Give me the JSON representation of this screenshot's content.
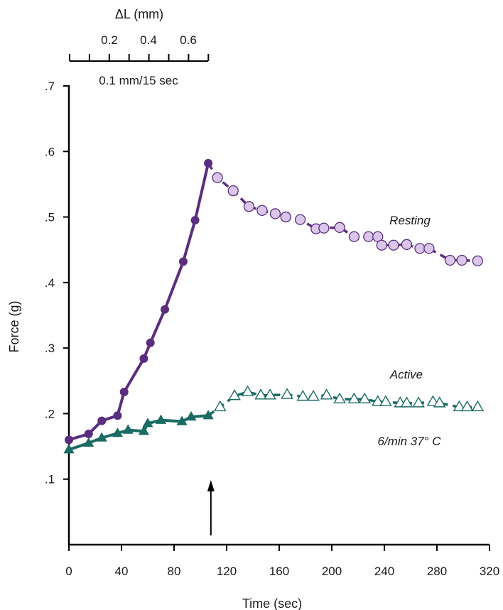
{
  "chart_data": {
    "type": "line",
    "xlabel": "Time (sec)",
    "ylabel": "Force (g)",
    "xlim": [
      0,
      320
    ],
    "ylim": [
      0,
      0.7
    ],
    "x_ticks": [
      0,
      40,
      80,
      120,
      160,
      200,
      240,
      280,
      320
    ],
    "x_tick_labels": [
      "0",
      "40",
      "80",
      "120",
      "160",
      "200",
      "240",
      "280",
      "320"
    ],
    "y_ticks": [
      0.1,
      0.2,
      0.3,
      0.4,
      0.5,
      0.6,
      0.7
    ],
    "y_tick_labels": [
      ".1",
      ".2",
      ".3",
      ".4",
      ".5",
      ".6",
      ".7"
    ],
    "grid": false,
    "series": [
      {
        "name": "Resting",
        "color": "#5b2d7e",
        "fill_color": "#d9c6e8",
        "marker": "circle",
        "segments": [
          {
            "style": "solid",
            "x": [
              0,
              15,
              25,
              37,
              42,
              57,
              62,
              73,
              87,
              96,
              106
            ],
            "y": [
              0.16,
              0.169,
              0.189,
              0.197,
              0.233,
              0.284,
              0.308,
              0.359,
              0.432,
              0.495,
              0.582
            ]
          },
          {
            "style": "dashed",
            "x": [
              106,
              113,
              125,
              137,
              147,
              157,
              165,
              176,
              188,
              194,
              206,
              217,
              228,
              235,
              238,
              247,
              257,
              267,
              274,
              290,
              299,
              311
            ],
            "y": [
              0.582,
              0.56,
              0.54,
              0.516,
              0.51,
              0.505,
              0.5,
              0.496,
              0.482,
              0.483,
              0.484,
              0.47,
              0.47,
              0.47,
              0.457,
              0.457,
              0.458,
              0.452,
              0.452,
              0.434,
              0.434,
              0.433
            ]
          }
        ]
      },
      {
        "name": "Active",
        "color": "#1a6b63",
        "marker": "triangle",
        "segments": [
          {
            "style": "solid",
            "x": [
              0,
              15,
              25,
              37,
              45,
              57,
              60,
              70,
              86,
              93,
              106
            ],
            "y": [
              0.145,
              0.155,
              0.163,
              0.17,
              0.175,
              0.173,
              0.185,
              0.19,
              0.188,
              0.195,
              0.197
            ]
          },
          {
            "style": "dashed",
            "x": [
              106,
              115,
              126,
              136,
              146,
              153,
              166,
              178,
              186,
              196,
              206,
              217,
              225,
              235,
              241,
              252,
              257,
              266,
              277,
              282,
              297,
              303,
              311
            ],
            "y": [
              0.197,
              0.21,
              0.227,
              0.233,
              0.228,
              0.228,
              0.229,
              0.226,
              0.226,
              0.228,
              0.222,
              0.222,
              0.222,
              0.218,
              0.218,
              0.216,
              0.216,
              0.216,
              0.218,
              0.216,
              0.21,
              0.21,
              0.21
            ]
          }
        ]
      }
    ],
    "annotations": {
      "resting_label": "Resting",
      "active_label": "Active",
      "condition": "6/min 37° C",
      "arrow_at_x": 108
    },
    "stretch_scale": {
      "title": "ΔL (mm)",
      "tick_labels": [
        "0.2",
        "0.4",
        "0.6"
      ],
      "rate_label": "0.1 mm/15 sec"
    }
  }
}
